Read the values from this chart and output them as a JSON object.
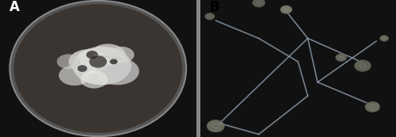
{
  "fig_width": 5.0,
  "fig_height": 1.73,
  "dpi": 100,
  "label_A": "A",
  "label_B": "B",
  "label_fontsize": 12,
  "label_color": "white",
  "label_B_color": "black",
  "bg_color_A": "#1a1a1a",
  "bg_color_B": "#c8d8e8",
  "panel_A_bg": "#0d0d0d",
  "dish_outer_color": "#888888",
  "dish_inner_bg": "#2a2a2a",
  "colony_color_white": "#e8e8e8",
  "colony_color_dark": "#444444",
  "sporangia_color": "#6a6a5a",
  "hyphae_color": "#a0b0c0",
  "border_color": "#cccccc",
  "panel_border": "#999999"
}
